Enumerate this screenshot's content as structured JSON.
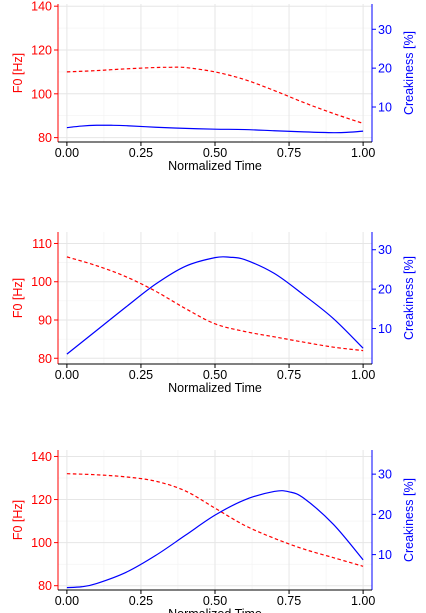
{
  "chart_data": [
    {
      "type": "line",
      "xlabel": "Normalized Time",
      "ylabel_left": "F0 [Hz]",
      "ylabel_right": "Creakiness [%]",
      "xlim": [
        -0.03,
        1.03
      ],
      "ylim_left": [
        78,
        141
      ],
      "ylim_right": [
        1,
        36.5
      ],
      "x_ticks": [
        "0.00",
        "0.25",
        "0.50",
        "0.75",
        "1.00"
      ],
      "y_left_ticks": [
        "80",
        "100",
        "120",
        "140"
      ],
      "y_right_ticks": [
        "10",
        "20",
        "30"
      ],
      "left_axis_color": "#ff0000",
      "right_axis_color": "#0000ff",
      "grid": true,
      "series": [
        {
          "axis": "left",
          "color": "#ff0000",
          "dash": "dashed",
          "x": [
            0,
            0.1,
            0.2,
            0.3,
            0.35,
            0.4,
            0.5,
            0.6,
            0.7,
            0.8,
            0.9,
            1.0
          ],
          "y": [
            110,
            110.6,
            111.4,
            112,
            112.1,
            112,
            110,
            106.5,
            101.5,
            96,
            91,
            86.5
          ]
        },
        {
          "axis": "right",
          "color": "#0000ff",
          "dash": "solid",
          "x": [
            0,
            0.05,
            0.1,
            0.15,
            0.2,
            0.3,
            0.4,
            0.5,
            0.6,
            0.7,
            0.8,
            0.9,
            0.95,
            1.0
          ],
          "y": [
            4.7,
            5.1,
            5.3,
            5.3,
            5.2,
            4.8,
            4.5,
            4.3,
            4.2,
            3.9,
            3.6,
            3.4,
            3.5,
            3.8
          ]
        }
      ]
    },
    {
      "type": "line",
      "xlabel": "Normalized Time",
      "ylabel_left": "F0 [Hz]",
      "ylabel_right": "Creakiness [%]",
      "xlim": [
        -0.03,
        1.03
      ],
      "ylim_left": [
        78.5,
        113
      ],
      "ylim_right": [
        1,
        34.5
      ],
      "x_ticks": [
        "0.00",
        "0.25",
        "0.50",
        "0.75",
        "1.00"
      ],
      "y_left_ticks": [
        "80",
        "90",
        "100",
        "110"
      ],
      "y_right_ticks": [
        "10",
        "20",
        "30"
      ],
      "left_axis_color": "#ff0000",
      "right_axis_color": "#0000ff",
      "grid": true,
      "series": [
        {
          "axis": "left",
          "color": "#ff0000",
          "dash": "dashed",
          "x": [
            0,
            0.1,
            0.2,
            0.3,
            0.4,
            0.5,
            0.6,
            0.7,
            0.8,
            0.9,
            1.0
          ],
          "y": [
            106.5,
            104.2,
            101.3,
            97.5,
            93,
            89,
            87,
            85.6,
            84.2,
            82.9,
            82
          ]
        },
        {
          "axis": "right",
          "color": "#0000ff",
          "dash": "solid",
          "x": [
            0,
            0.1,
            0.2,
            0.3,
            0.4,
            0.5,
            0.55,
            0.6,
            0.7,
            0.8,
            0.9,
            1.0
          ],
          "y": [
            3.5,
            9.5,
            15.5,
            21.3,
            25.8,
            28,
            28.1,
            27.5,
            24,
            18.5,
            12.5,
            5
          ]
        }
      ]
    },
    {
      "type": "line",
      "xlabel": "Normalized Time",
      "ylabel_left": "F0 [Hz]",
      "ylabel_right": "Creakiness [%]",
      "xlim": [
        -0.03,
        1.03
      ],
      "ylim_left": [
        78,
        143
      ],
      "ylim_right": [
        1.2,
        36
      ],
      "x_ticks": [
        "0.00",
        "0.25",
        "0.50",
        "0.75",
        "1.00"
      ],
      "y_left_ticks": [
        "80",
        "100",
        "120",
        "140"
      ],
      "y_right_ticks": [
        "10",
        "20",
        "30"
      ],
      "left_axis_color": "#ff0000",
      "right_axis_color": "#0000ff",
      "grid": true,
      "series": [
        {
          "axis": "left",
          "color": "#ff0000",
          "dash": "dashed",
          "x": [
            0,
            0.1,
            0.2,
            0.3,
            0.4,
            0.5,
            0.6,
            0.7,
            0.8,
            0.9,
            1.0
          ],
          "y": [
            132,
            131.5,
            130.5,
            128.5,
            124,
            116,
            108,
            102,
            97,
            93,
            89
          ]
        },
        {
          "axis": "right",
          "color": "#0000ff",
          "dash": "solid",
          "x": [
            0,
            0.05,
            0.1,
            0.2,
            0.3,
            0.4,
            0.5,
            0.6,
            0.7,
            0.75,
            0.8,
            0.9,
            1.0
          ],
          "y": [
            1.8,
            2.0,
            2.8,
            5.6,
            9.8,
            14.8,
            19.8,
            23.6,
            25.7,
            25.6,
            24.0,
            17.5,
            8.7
          ]
        }
      ]
    }
  ]
}
